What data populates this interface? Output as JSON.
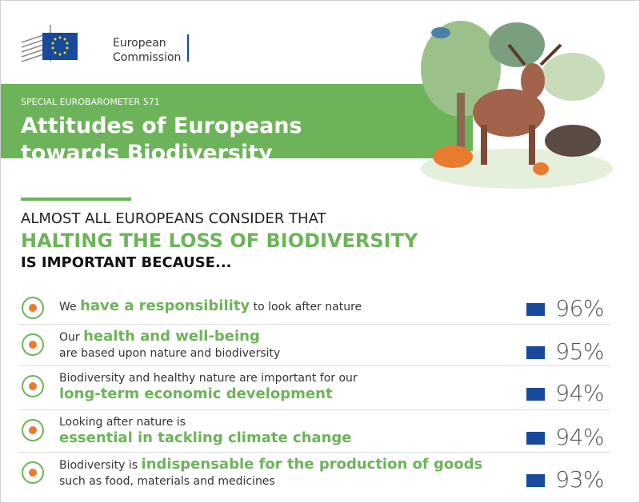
{
  "header": {
    "logo_line1": "European",
    "logo_line2": "Commission"
  },
  "banner": {
    "kicker": "SPECIAL EUROBAROMETER 571",
    "title_line1": "Attitudes of Europeans",
    "title_line2": "towards Biodiversity"
  },
  "intro": {
    "line1": "ALMOST ALL EUROPEANS CONSIDER THAT",
    "line2": "HALTING THE LOSS OF BIODIVERSITY",
    "line3": "IS IMPORTANT BECAUSE..."
  },
  "items": [
    {
      "before": "We ",
      "highlight": "have a responsibility",
      "after": " to look after nature",
      "percent": "96%"
    },
    {
      "before": "Our ",
      "highlight": "health and well-being",
      "after": "are based upon nature and biodiversity",
      "percent": "95%"
    },
    {
      "before": "Biodiversity and healthy nature are important for our",
      "highlight": "long-term economic development",
      "percent": "94%"
    },
    {
      "before": "Looking after nature is",
      "highlight": "essential in tackling climate change",
      "percent": "94%"
    },
    {
      "before": "Biodiversity is ",
      "highlight": "indispensable for the production of goods",
      "after": "such as food, materials and medicines",
      "percent": "93%"
    }
  ]
}
